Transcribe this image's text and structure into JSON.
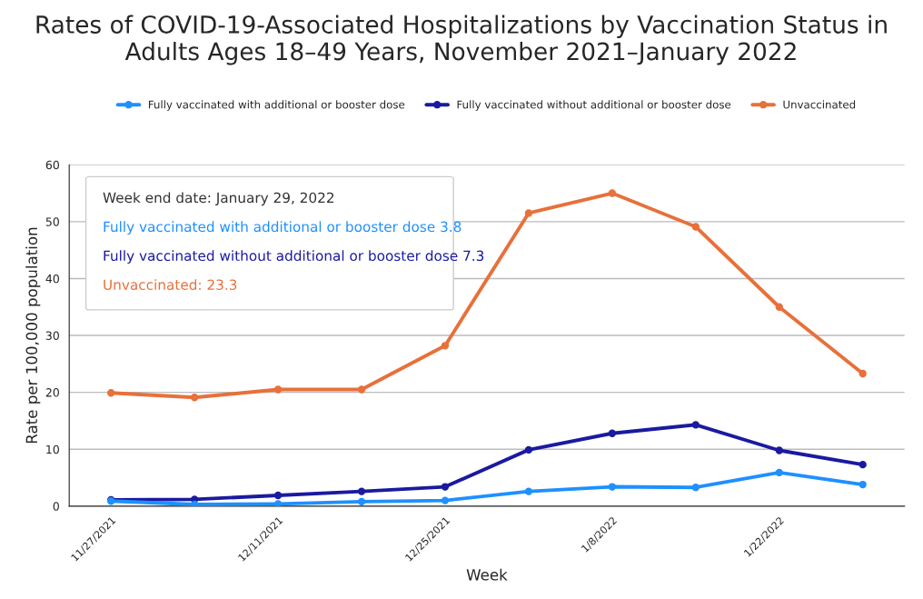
{
  "chart_data": {
    "type": "line",
    "title": "Rates of COVID-19-Associated Hospitalizations by Vaccination Status in Adults Ages 18–49 Years, November 2021–January 2022",
    "xlabel": "Week",
    "ylabel": "Rate per 100,000 population",
    "categories": [
      "11/27/2021",
      null,
      "12/11/2021",
      null,
      "12/25/2021",
      null,
      "1/8/2022",
      null,
      "1/22/2022",
      null
    ],
    "series": [
      {
        "name": "Fully vaccinated with additional or booster dose",
        "color": "#1e90ff",
        "values": [
          0.9,
          0.3,
          0.4,
          0.8,
          1.0,
          2.6,
          3.4,
          3.3,
          5.9,
          3.8
        ]
      },
      {
        "name": "Fully vaccinated without additional or booster dose",
        "color": "#1a1aa0",
        "values": [
          1.1,
          1.2,
          1.9,
          2.6,
          3.4,
          9.9,
          12.8,
          14.3,
          9.8,
          7.3
        ]
      },
      {
        "name": "Unvaccinated",
        "color": "#e8703a",
        "values": [
          19.9,
          19.1,
          20.5,
          20.5,
          28.2,
          51.5,
          55.0,
          49.1,
          35.0,
          23.3
        ]
      }
    ],
    "annotations": [
      "Week end date: January 29, 2022",
      "Fully vaccinated with additional or booster dose 3.8",
      "Fully vaccinated without additional or booster dose 7.3",
      "Unvaccinated: 23.3"
    ],
    "ylim": [
      0,
      60
    ],
    "yticks": [
      0,
      10,
      20,
      30,
      40,
      50,
      60
    ],
    "grid": "y",
    "legend": "top",
    "marker": "circle",
    "line_style": "solid"
  }
}
